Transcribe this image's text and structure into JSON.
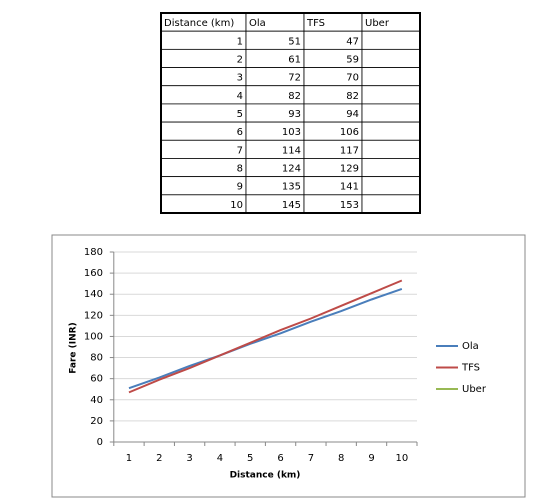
{
  "table": {
    "header": [
      "Distance (km)",
      "Ola",
      "TFS",
      "Uber"
    ],
    "rows": [
      [
        1,
        51,
        47
      ],
      [
        2,
        61,
        59
      ],
      [
        3,
        72,
        70
      ],
      [
        4,
        82,
        82
      ],
      [
        5,
        93,
        94
      ],
      [
        6,
        103,
        106
      ],
      [
        7,
        114,
        117
      ],
      [
        8,
        124,
        129
      ],
      [
        9,
        135,
        141
      ],
      [
        10,
        145,
        153
      ]
    ]
  },
  "chart_data": {
    "type": "line",
    "xlabel": "Distance (km)",
    "ylabel": "Fare (INR)",
    "categories": [
      1,
      2,
      3,
      4,
      5,
      6,
      7,
      8,
      9,
      10
    ],
    "series": [
      {
        "name": "Ola",
        "color": "#4a7ebb",
        "values": [
          51,
          61,
          72,
          82,
          93,
          103,
          114,
          124,
          135,
          145
        ]
      },
      {
        "name": "TFS",
        "color": "#be4b48",
        "values": [
          47,
          59,
          70,
          82,
          94,
          106,
          117,
          129,
          141,
          153
        ]
      },
      {
        "name": "Uber",
        "color": "#98b954",
        "values": [
          null,
          null,
          null,
          null,
          null,
          null,
          null,
          null,
          null,
          null
        ]
      }
    ],
    "ylim": [
      0,
      180
    ],
    "yticks": [
      0,
      20,
      40,
      60,
      80,
      100,
      120,
      140,
      160,
      180
    ],
    "grid": true,
    "legend": "right"
  }
}
